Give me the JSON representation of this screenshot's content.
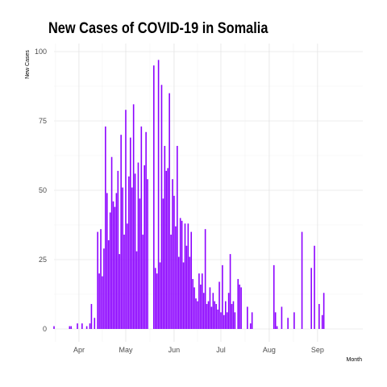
{
  "chart_data": {
    "type": "bar",
    "title": "New Cases of COVID-19 in Somalia",
    "xlabel": "Month",
    "ylabel": "New Cases",
    "ylim": [
      0,
      100
    ],
    "yticks": [
      0,
      25,
      50,
      75,
      100
    ],
    "x_start": "2020-03-16",
    "x_end": "2020-09-30",
    "xticks": [
      {
        "date": "2020-04-01",
        "label": "Apr"
      },
      {
        "date": "2020-05-01",
        "label": "May"
      },
      {
        "date": "2020-06-01",
        "label": "Jun"
      },
      {
        "date": "2020-07-01",
        "label": "Jul"
      },
      {
        "date": "2020-08-01",
        "label": "Aug"
      },
      {
        "date": "2020-09-01",
        "label": "Sep"
      }
    ],
    "grid": true,
    "bar_color": "#8B00FF",
    "data": [
      [
        "2020-03-16",
        1
      ],
      [
        "2020-03-26",
        1
      ],
      [
        "2020-03-27",
        1
      ],
      [
        "2020-03-31",
        2
      ],
      [
        "2020-04-03",
        2
      ],
      [
        "2020-04-06",
        1
      ],
      [
        "2020-04-08",
        2
      ],
      [
        "2020-04-09",
        9
      ],
      [
        "2020-04-11",
        4
      ],
      [
        "2020-04-13",
        35
      ],
      [
        "2020-04-14",
        20
      ],
      [
        "2020-04-15",
        36
      ],
      [
        "2020-04-16",
        19
      ],
      [
        "2020-04-17",
        29
      ],
      [
        "2020-04-18",
        73
      ],
      [
        "2020-04-19",
        49
      ],
      [
        "2020-04-20",
        32
      ],
      [
        "2020-04-21",
        42
      ],
      [
        "2020-04-22",
        62
      ],
      [
        "2020-04-23",
        46
      ],
      [
        "2020-04-24",
        44
      ],
      [
        "2020-04-25",
        49
      ],
      [
        "2020-04-26",
        57
      ],
      [
        "2020-04-27",
        27
      ],
      [
        "2020-04-28",
        70
      ],
      [
        "2020-04-29",
        51
      ],
      [
        "2020-04-30",
        34
      ],
      [
        "2020-05-01",
        79
      ],
      [
        "2020-05-02",
        38
      ],
      [
        "2020-05-03",
        55
      ],
      [
        "2020-05-04",
        69
      ],
      [
        "2020-05-05",
        51
      ],
      [
        "2020-05-06",
        81
      ],
      [
        "2020-05-07",
        56
      ],
      [
        "2020-05-08",
        28
      ],
      [
        "2020-05-09",
        60
      ],
      [
        "2020-05-10",
        47
      ],
      [
        "2020-05-11",
        73
      ],
      [
        "2020-05-12",
        34
      ],
      [
        "2020-05-13",
        59
      ],
      [
        "2020-05-14",
        71
      ],
      [
        "2020-05-15",
        54
      ],
      [
        "2020-05-19",
        95
      ],
      [
        "2020-05-20",
        22
      ],
      [
        "2020-05-21",
        20
      ],
      [
        "2020-05-22",
        97
      ],
      [
        "2020-05-23",
        24
      ],
      [
        "2020-05-24",
        88
      ],
      [
        "2020-05-25",
        47
      ],
      [
        "2020-05-26",
        66
      ],
      [
        "2020-05-27",
        57
      ],
      [
        "2020-05-28",
        58
      ],
      [
        "2020-05-29",
        85
      ],
      [
        "2020-05-30",
        34
      ],
      [
        "2020-05-31",
        54
      ],
      [
        "2020-06-01",
        48
      ],
      [
        "2020-06-02",
        37
      ],
      [
        "2020-06-03",
        66
      ],
      [
        "2020-06-04",
        26
      ],
      [
        "2020-06-05",
        40
      ],
      [
        "2020-06-06",
        39
      ],
      [
        "2020-06-07",
        24
      ],
      [
        "2020-06-08",
        38
      ],
      [
        "2020-06-09",
        30
      ],
      [
        "2020-06-10",
        38
      ],
      [
        "2020-06-11",
        26
      ],
      [
        "2020-06-12",
        35
      ],
      [
        "2020-06-13",
        18
      ],
      [
        "2020-06-14",
        15
      ],
      [
        "2020-06-15",
        11
      ],
      [
        "2020-06-16",
        10
      ],
      [
        "2020-06-17",
        20
      ],
      [
        "2020-06-18",
        16
      ],
      [
        "2020-06-19",
        20
      ],
      [
        "2020-06-20",
        13
      ],
      [
        "2020-06-21",
        36
      ],
      [
        "2020-06-22",
        9
      ],
      [
        "2020-06-23",
        10
      ],
      [
        "2020-06-24",
        15
      ],
      [
        "2020-06-25",
        8
      ],
      [
        "2020-06-26",
        13
      ],
      [
        "2020-06-27",
        10
      ],
      [
        "2020-06-28",
        9
      ],
      [
        "2020-06-29",
        7
      ],
      [
        "2020-06-30",
        17
      ],
      [
        "2020-07-01",
        6
      ],
      [
        "2020-07-02",
        23
      ],
      [
        "2020-07-03",
        5
      ],
      [
        "2020-07-04",
        10
      ],
      [
        "2020-07-05",
        6
      ],
      [
        "2020-07-06",
        13
      ],
      [
        "2020-07-07",
        27
      ],
      [
        "2020-07-08",
        9
      ],
      [
        "2020-07-09",
        10
      ],
      [
        "2020-07-10",
        6
      ],
      [
        "2020-07-12",
        18
      ],
      [
        "2020-07-13",
        16
      ],
      [
        "2020-07-14",
        15
      ],
      [
        "2020-07-18",
        8
      ],
      [
        "2020-07-20",
        2
      ],
      [
        "2020-07-21",
        6
      ],
      [
        "2020-08-04",
        23
      ],
      [
        "2020-08-05",
        6
      ],
      [
        "2020-08-06",
        1
      ],
      [
        "2020-08-09",
        8
      ],
      [
        "2020-08-13",
        4
      ],
      [
        "2020-08-17",
        6
      ],
      [
        "2020-08-22",
        35
      ],
      [
        "2020-08-28",
        22
      ],
      [
        "2020-08-30",
        30
      ],
      [
        "2020-09-02",
        9
      ],
      [
        "2020-09-04",
        5
      ],
      [
        "2020-09-05",
        13
      ]
    ]
  }
}
